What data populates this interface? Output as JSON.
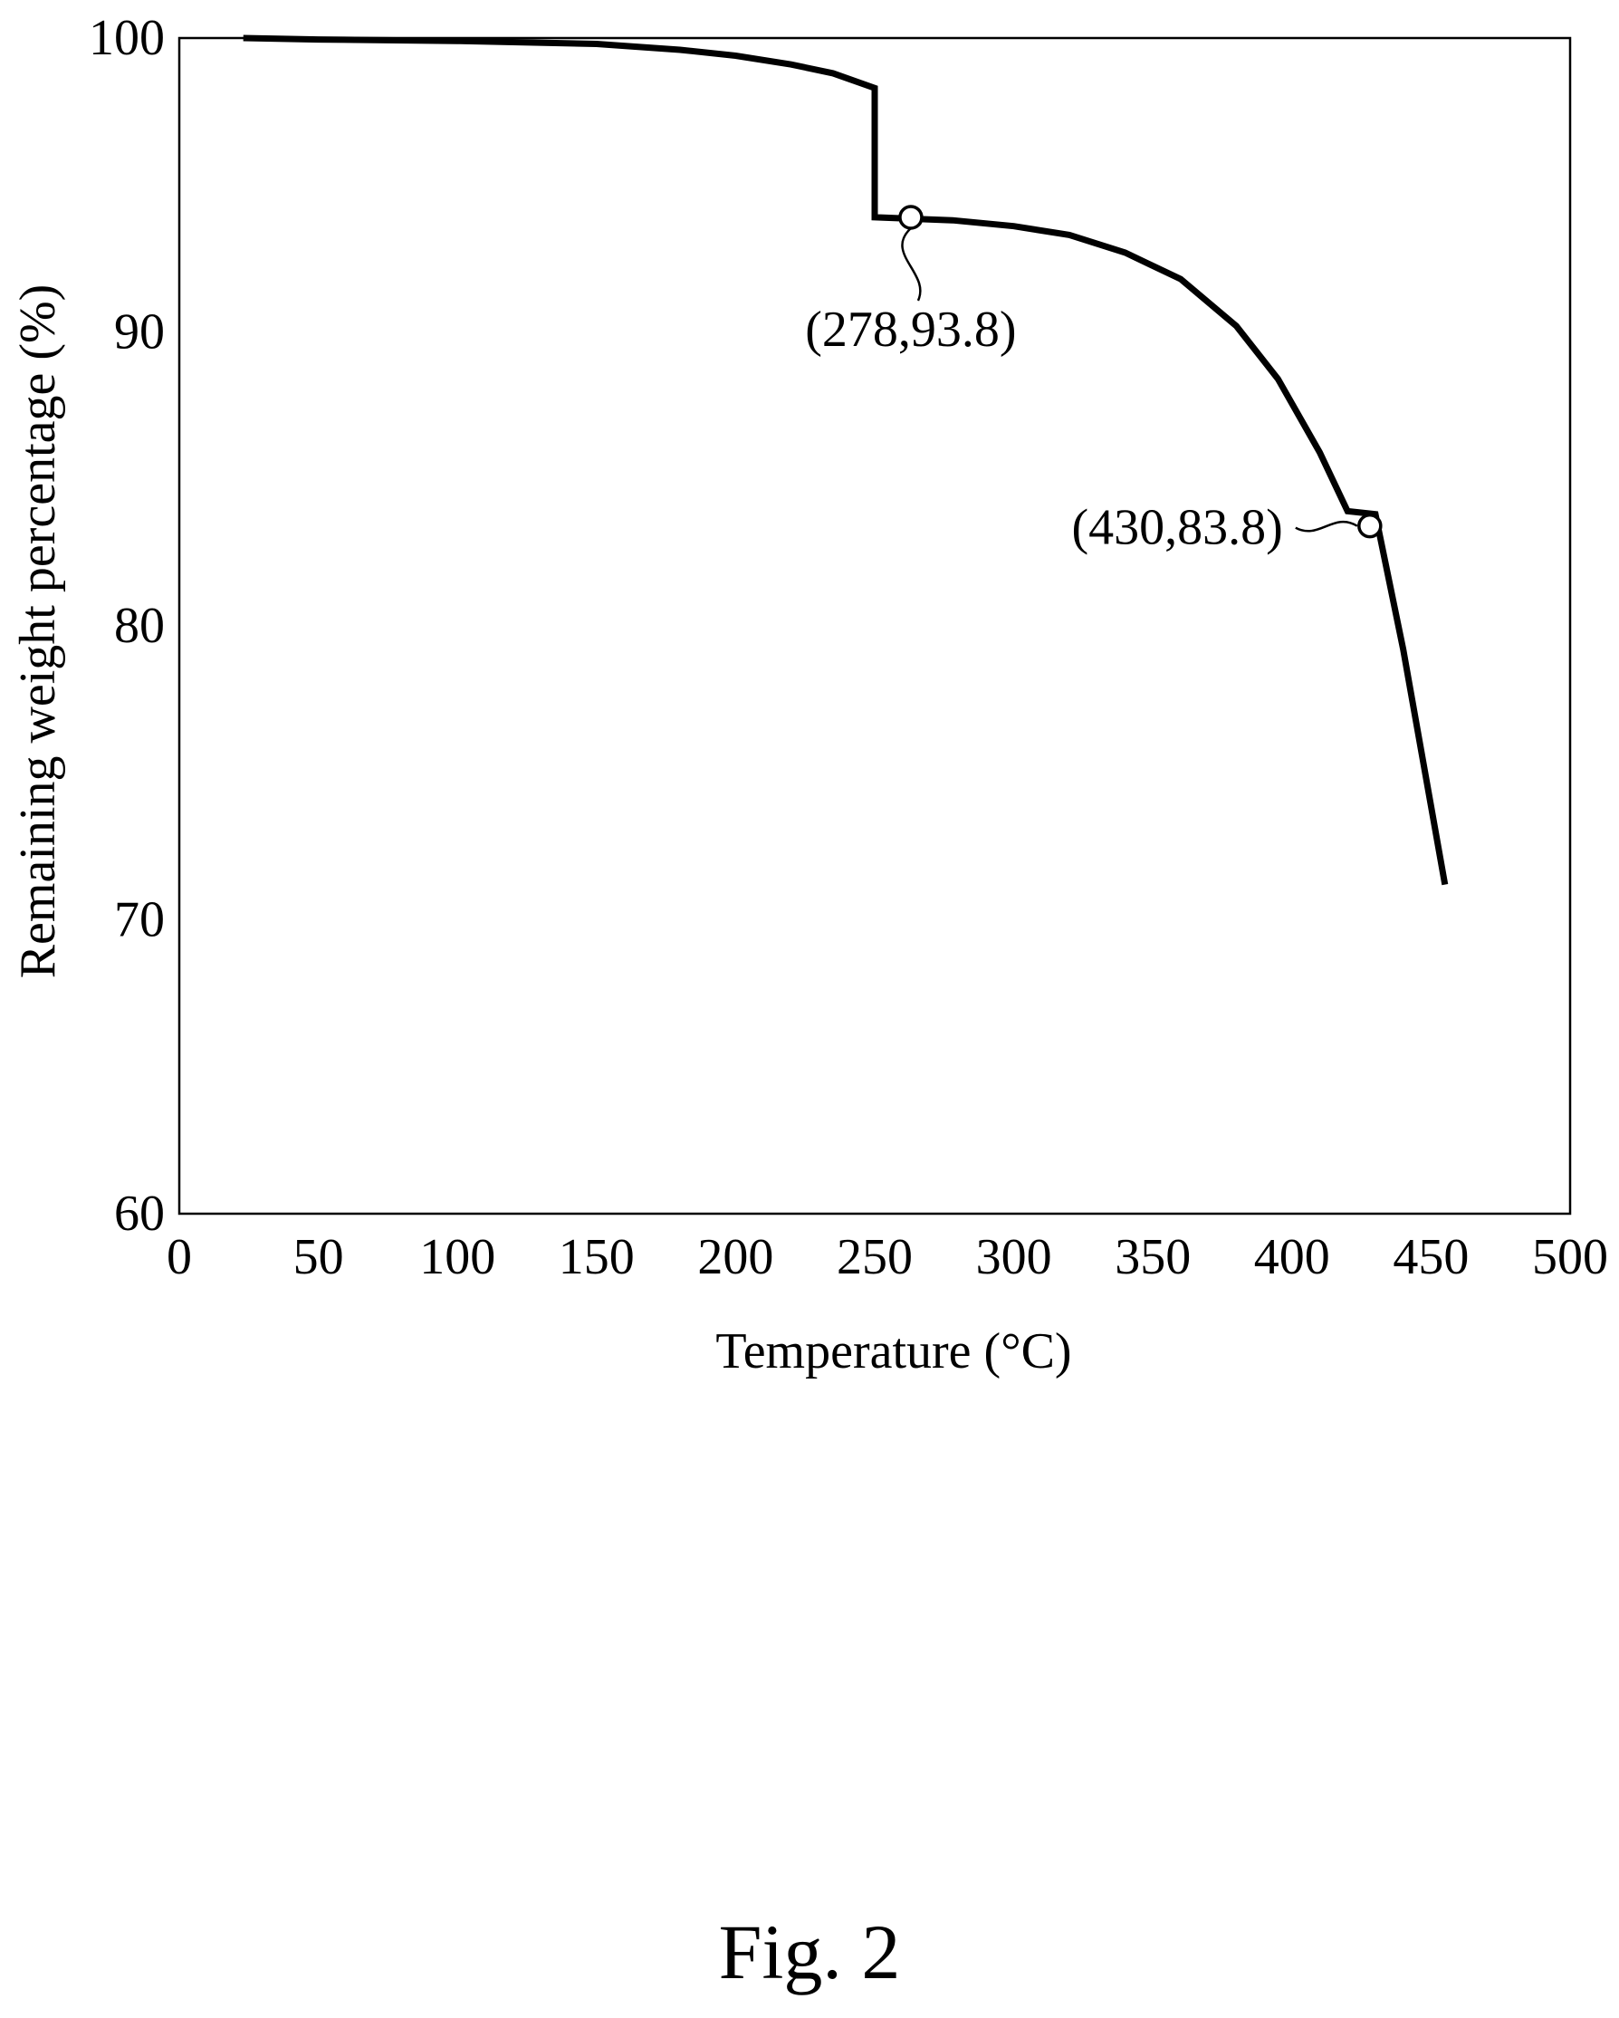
{
  "figure": {
    "caption": "Fig. 2"
  },
  "chart_data": {
    "type": "line",
    "title": "",
    "xlabel": "Temperature (°C)",
    "ylabel": "Remaining weight percentage (%)",
    "xlim": [
      0,
      500
    ],
    "ylim": [
      60,
      100
    ],
    "xticks": [
      0,
      50,
      100,
      150,
      200,
      250,
      300,
      350,
      400,
      450,
      500
    ],
    "yticks": [
      60,
      70,
      80,
      90,
      100
    ],
    "grid": false,
    "legend": "none",
    "line_color": "#000000",
    "series": [
      {
        "x": [
          23,
          50,
          100,
          150,
          180,
          200,
          220,
          235,
          250,
          250,
          278,
          300,
          320,
          340,
          360,
          380,
          395,
          410,
          420,
          430,
          440,
          455
        ],
        "y": [
          100,
          99.95,
          99.9,
          99.8,
          99.6,
          99.4,
          99.1,
          98.8,
          98.3,
          93.9,
          93.8,
          93.6,
          93.3,
          92.7,
          91.8,
          90.2,
          88.4,
          85.9,
          83.9,
          83.8,
          79.2,
          71.2
        ]
      }
    ],
    "annotations": [
      {
        "text": "(278,93.8)",
        "x": 263,
        "y": 93.9
      },
      {
        "text": "(430,83.8)",
        "x": 428,
        "y": 83.4
      }
    ]
  }
}
